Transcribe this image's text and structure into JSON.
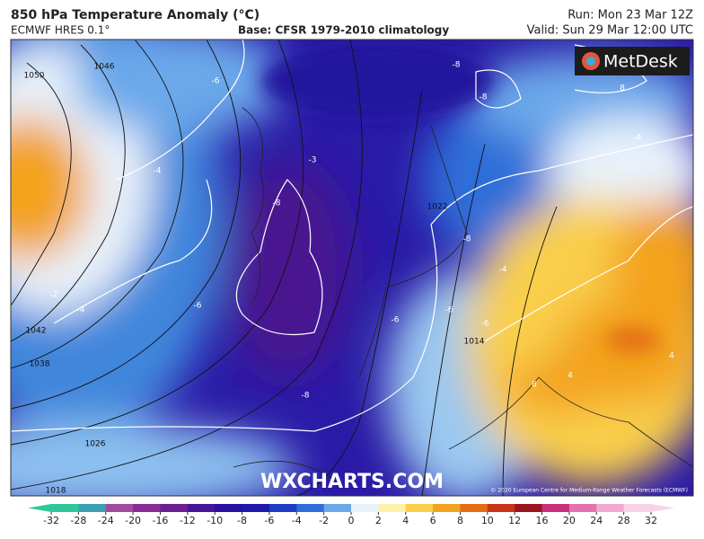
{
  "header": {
    "title": "850 hPa Temperature Anomaly (°C)",
    "model": "ECMWF HRES 0.1°",
    "base": "Base: CFSR 1979-2010 climatology",
    "run": "Run: Mon 23 Mar 12Z",
    "valid": "Valid: Sun 29 Mar 12:00 UTC"
  },
  "logo": "MetDesk",
  "watermark": "WXCHARTS.COM",
  "copyright": "© 2020 European Centre for Medium-Range Weather Forecasts (ECMWF)",
  "isobar_labels": [
    "1050",
    "1046",
    "1042",
    "1038",
    "1026",
    "1018",
    "1022",
    "1014"
  ],
  "anomaly_labels": [
    "-8",
    "-8",
    "-8",
    "-8",
    "-8",
    "-6",
    "-6",
    "-6",
    "-6",
    "-6",
    "-4",
    "-4",
    "-4",
    "-4",
    "-2",
    "-3",
    "4",
    "4",
    "8",
    "8"
  ],
  "colorbar": {
    "ticks": [
      -32,
      -28,
      -24,
      -20,
      -16,
      -12,
      -10,
      -8,
      -6,
      -4,
      -2,
      0,
      2,
      4,
      6,
      8,
      10,
      12,
      16,
      20,
      24,
      28,
      32
    ],
    "colors": [
      "#2fc79a",
      "#3b9fb0",
      "#a24b9c",
      "#8a2c96",
      "#6a1f94",
      "#46159a",
      "#2a10a0",
      "#1f1aa8",
      "#1e3cc4",
      "#2e6ed8",
      "#6aa8ea",
      "#e8f2fb",
      "#fdf1a8",
      "#f9cf4c",
      "#f3a21f",
      "#e46e14",
      "#c8331a",
      "#9a1420",
      "#c8307a",
      "#e671b0",
      "#f2a9cf",
      "#f8d2e6"
    ]
  }
}
